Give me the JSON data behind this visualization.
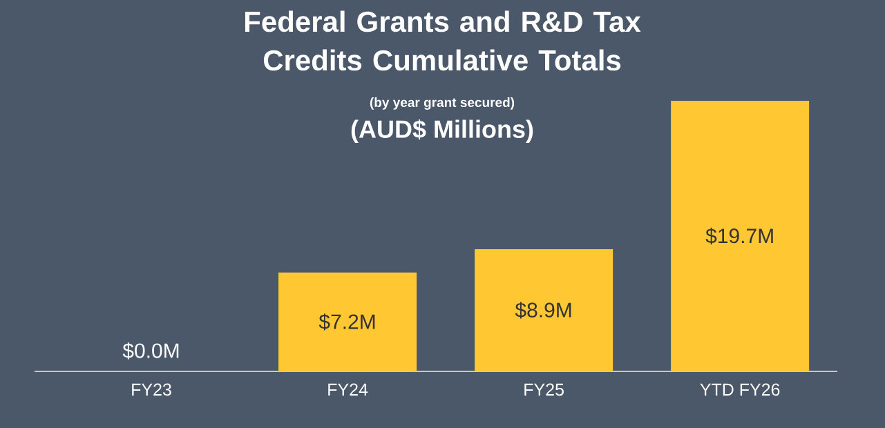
{
  "chart_data": {
    "type": "bar",
    "title": "Federal Grants and R&D Tax Credits Cumulative Totals",
    "subtitle": "(by year grant secured)",
    "annotations": [
      "(AUD$ Millions)"
    ],
    "categories": [
      "FY23",
      "FY24",
      "FY25",
      "YTD FY26"
    ],
    "values": [
      0,
      7.2,
      8.9,
      19.7
    ],
    "value_labels": [
      "$0.0M",
      "$7.2M",
      "$8.9M",
      "$19.7M"
    ],
    "color": "#ffc732"
  }
}
